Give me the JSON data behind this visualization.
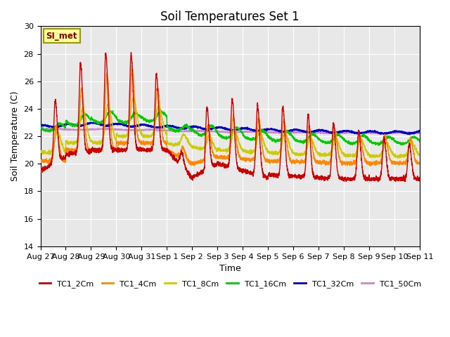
{
  "title": "Soil Temperatures Set 1",
  "xlabel": "Time",
  "ylabel": "Soil Temperature (C)",
  "ylim": [
    14,
    30
  ],
  "background_color": "#e8e8e8",
  "grid_color": "white",
  "annotation_text": "SI_met",
  "annotation_bg": "#ffff99",
  "annotation_border": "#999900",
  "annotation_text_color": "#880000",
  "x_tick_labels": [
    "Aug 27",
    "Aug 28",
    "Aug 29",
    "Aug 30",
    "Aug 31",
    "Sep 1",
    "Sep 2",
    "Sep 3",
    "Sep 4",
    "Sep 5",
    "Sep 6",
    "Sep 7",
    "Sep 8",
    "Sep 9",
    "Sep 10",
    "Sep 11"
  ],
  "series": {
    "TC1_2Cm": {
      "color": "#cc0000",
      "lw": 1.0
    },
    "TC1_4Cm": {
      "color": "#ff8800",
      "lw": 1.0
    },
    "TC1_8Cm": {
      "color": "#cccc00",
      "lw": 1.0
    },
    "TC1_16Cm": {
      "color": "#00cc00",
      "lw": 1.0
    },
    "TC1_32Cm": {
      "color": "#0000cc",
      "lw": 1.2
    },
    "TC1_50Cm": {
      "color": "#cc88cc",
      "lw": 1.2
    }
  }
}
